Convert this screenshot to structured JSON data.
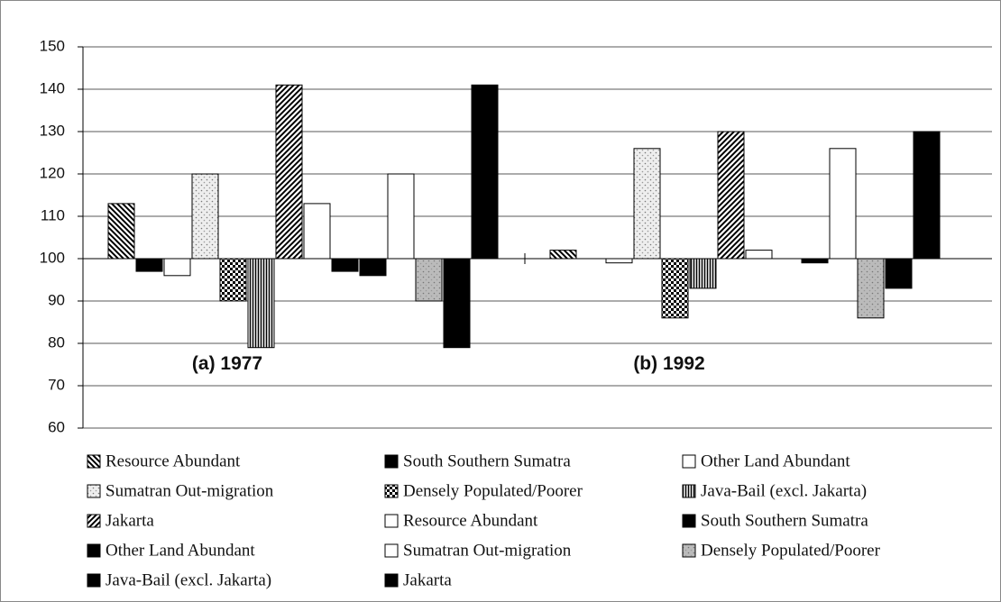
{
  "chart_data": {
    "type": "bar",
    "categories": [
      "(a) 1977",
      "(b) 1992"
    ],
    "x_axis_crosses": 100,
    "ylim": [
      60,
      150
    ],
    "yticks": [
      60,
      70,
      80,
      90,
      100,
      110,
      120,
      130,
      140,
      150
    ],
    "grid": true,
    "legend": "bottom",
    "series": [
      {
        "name": "Resource Abundant",
        "color": "#000000",
        "pattern": "diagonal-back",
        "values": [
          113,
          102
        ]
      },
      {
        "name": "South Southern Sumatra",
        "color": "#000000",
        "pattern": "solid",
        "values": [
          97,
          100
        ]
      },
      {
        "name": "Other Land Abundant",
        "color": "#ffffff",
        "pattern": "solid",
        "values": [
          96,
          99
        ]
      },
      {
        "name": "Sumatran Out-migration",
        "color": "#eeeeee",
        "pattern": "speckle",
        "values": [
          120,
          126
        ]
      },
      {
        "name": "Densely Populated/Poorer",
        "color": "#000000",
        "pattern": "checker",
        "values": [
          90,
          86
        ]
      },
      {
        "name": "Java-Bail (excl. Jakarta)",
        "color": "#000000",
        "pattern": "vertical",
        "values": [
          79,
          93
        ]
      },
      {
        "name": "Jakarta",
        "color": "#000000",
        "pattern": "diagonal-forward",
        "values": [
          141,
          130
        ]
      },
      {
        "name": "Resource Abundant",
        "color": "#ffffff",
        "pattern": "solid",
        "values": [
          113,
          102
        ]
      },
      {
        "name": "South Southern Sumatra",
        "color": "#000000",
        "pattern": "solid",
        "values": [
          97,
          100
        ]
      },
      {
        "name": "Other Land Abundant",
        "color": "#000000",
        "pattern": "solid",
        "values": [
          96,
          99
        ]
      },
      {
        "name": "Sumatran Out-migration",
        "color": "#ffffff",
        "pattern": "solid",
        "values": [
          120,
          126
        ]
      },
      {
        "name": "Densely Populated/Poorer",
        "color": "#bbbbbb",
        "pattern": "speckle",
        "values": [
          90,
          86
        ]
      },
      {
        "name": "Java-Bail (excl. Jakarta)",
        "color": "#000000",
        "pattern": "solid",
        "values": [
          79,
          93
        ]
      },
      {
        "name": "Jakarta",
        "color": "#000000",
        "pattern": "solid",
        "values": [
          141,
          130
        ]
      }
    ]
  }
}
